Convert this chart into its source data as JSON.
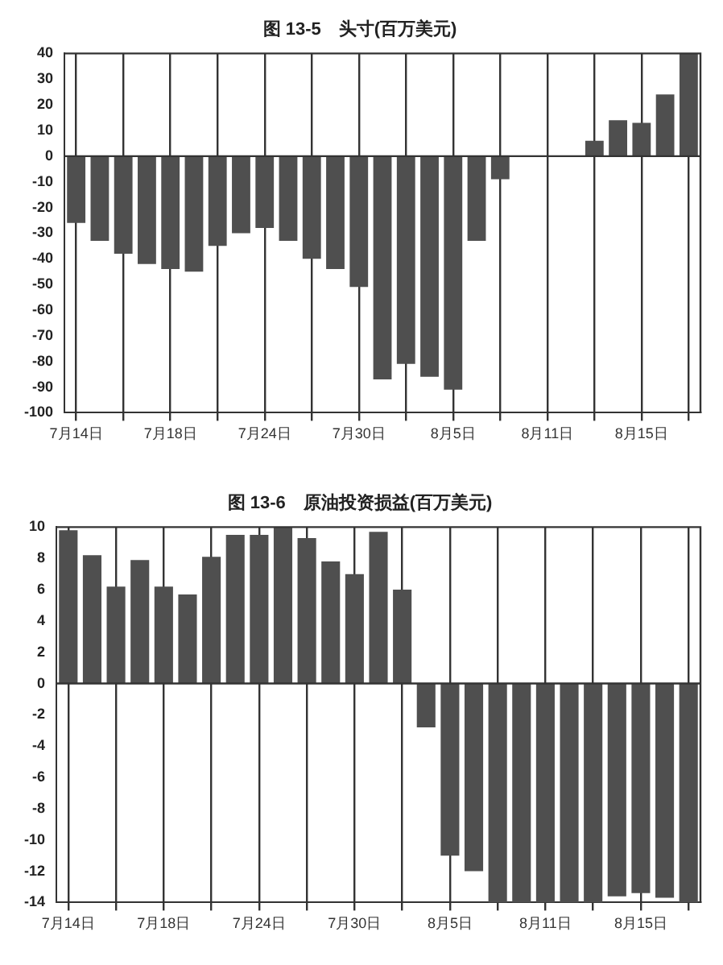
{
  "chart_data": [
    {
      "type": "bar",
      "title": "图 13-5　头寸(百万美元)",
      "categories": [
        "7月14日",
        null,
        null,
        null,
        "7月18日",
        null,
        null,
        null,
        "7月24日",
        null,
        null,
        null,
        "7月30日",
        null,
        null,
        null,
        "8月5日",
        null,
        null,
        null,
        "8月11日",
        null,
        null,
        null,
        "8月15日",
        null,
        null
      ],
      "values": [
        -26,
        -33,
        -38,
        -42,
        -44,
        -45,
        -35,
        -30,
        -28,
        -33,
        -40,
        -44,
        -51,
        -87,
        -81,
        -86,
        -91,
        -33,
        -9,
        0,
        0,
        0,
        6,
        14,
        13,
        24,
        40
      ],
      "color": "#4f4f4f",
      "ylim": [
        -100,
        40
      ],
      "yticks": [
        -100,
        -90,
        -80,
        -70,
        -60,
        -50,
        -40,
        -30,
        -20,
        -10,
        0,
        10,
        20,
        30,
        40
      ],
      "grid": "x",
      "ref_lines": [
        {
          "axis": "y",
          "value": 0,
          "color": "#333333"
        }
      ]
    },
    {
      "type": "bar",
      "title": "图 13-6　原油投资损益(百万美元)",
      "categories": [
        "7月14日",
        null,
        null,
        null,
        "7月18日",
        null,
        null,
        null,
        "7月24日",
        null,
        null,
        null,
        "7月30日",
        null,
        null,
        null,
        "8月5日",
        null,
        null,
        null,
        "8月11日",
        null,
        null,
        null,
        "8月15日",
        null,
        null
      ],
      "values": [
        9.8,
        8.2,
        6.2,
        7.9,
        6.2,
        5.7,
        8.1,
        9.5,
        9.5,
        10,
        9.3,
        7.8,
        7.0,
        9.7,
        6.0,
        -2.8,
        -11,
        -12,
        -14,
        -14,
        -14,
        -14,
        -14,
        -13.6,
        -13.4,
        -13.7,
        -14
      ],
      "color": "#4f4f4f",
      "ylim": [
        -14,
        10
      ],
      "yticks": [
        -14,
        -12,
        -10,
        -8,
        -6,
        -4,
        -2,
        0,
        2,
        4,
        6,
        8,
        10
      ],
      "grid": "x",
      "ref_lines": [
        {
          "axis": "y",
          "value": 0,
          "color": "#333333"
        }
      ]
    }
  ]
}
